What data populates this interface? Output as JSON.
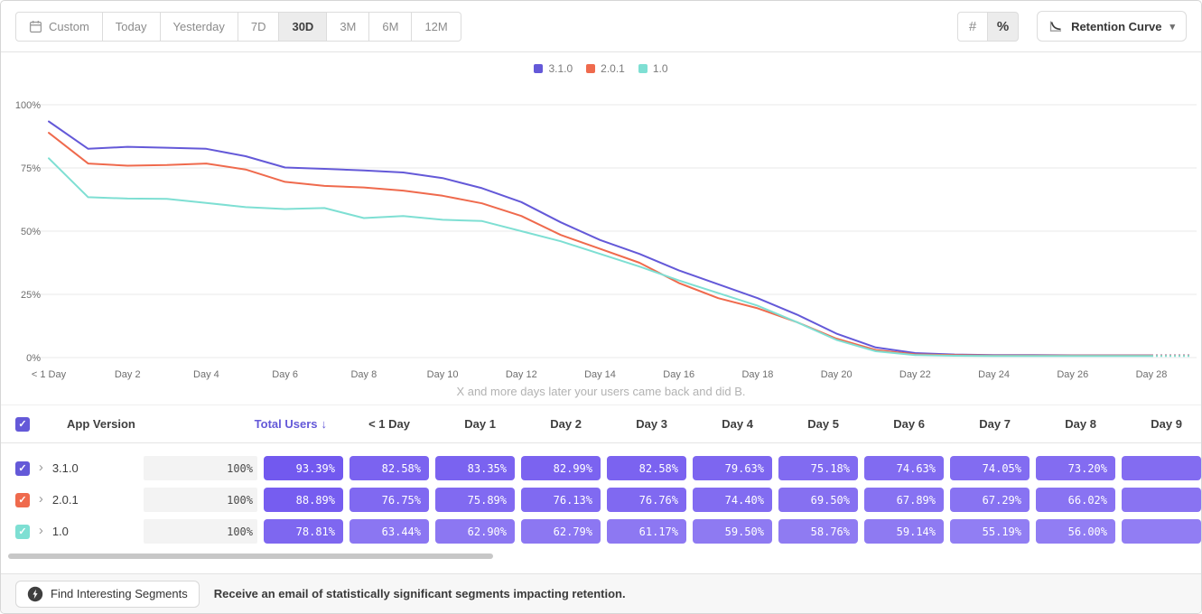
{
  "toolbar": {
    "date_ranges": [
      {
        "label": "Custom",
        "icon": "calendar",
        "active": false
      },
      {
        "label": "Today",
        "active": false
      },
      {
        "label": "Yesterday",
        "active": false
      },
      {
        "label": "7D",
        "active": false
      },
      {
        "label": "30D",
        "active": true
      },
      {
        "label": "3M",
        "active": false
      },
      {
        "label": "6M",
        "active": false
      },
      {
        "label": "12M",
        "active": false
      }
    ],
    "value_toggles": [
      {
        "icon": "hash",
        "glyph": "#",
        "active": false
      },
      {
        "icon": "percent",
        "glyph": "%",
        "active": true
      }
    ],
    "chart_type": {
      "label": "Retention Curve"
    }
  },
  "chart_data": {
    "type": "line",
    "x_label_caption": "X and more days later your users came back and did B.",
    "y_ticks": [
      "0%",
      "25%",
      "50%",
      "75%",
      "100%"
    ],
    "x_ticks": [
      "< 1 Day",
      "Day 2",
      "Day 4",
      "Day 6",
      "Day 8",
      "Day 10",
      "Day 12",
      "Day 14",
      "Day 16",
      "Day 18",
      "Day 20",
      "Day 22",
      "Day 24",
      "Day 26",
      "Day 28"
    ],
    "ylim": [
      0,
      100
    ],
    "grid": "horizontal",
    "legend_position": "top-center",
    "series": [
      {
        "name": "3.1.0",
        "color": "#6459D8",
        "values": [
          93.39,
          82.58,
          83.35,
          82.99,
          82.58,
          79.63,
          75.18,
          74.63,
          74.05,
          73.2,
          71.0,
          67.0,
          61.5,
          53.5,
          46.5,
          41.0,
          34.5,
          29.0,
          23.5,
          17.0,
          9.5,
          4.0,
          1.8,
          1.2,
          1.0,
          1.0,
          0.9,
          0.9,
          0.9,
          0.9
        ]
      },
      {
        "name": "2.0.1",
        "color": "#EF6A4D",
        "values": [
          88.89,
          76.75,
          75.89,
          76.13,
          76.76,
          74.4,
          69.5,
          67.89,
          67.29,
          66.02,
          64.0,
          61.0,
          56.0,
          48.5,
          43.0,
          37.5,
          29.5,
          23.5,
          19.5,
          14.0,
          7.5,
          3.0,
          1.3,
          1.0,
          0.8,
          0.8,
          0.8,
          0.8,
          0.8,
          0.8
        ]
      },
      {
        "name": "1.0",
        "color": "#7EDFD3",
        "values": [
          78.81,
          63.44,
          62.9,
          62.79,
          61.17,
          59.5,
          58.76,
          59.14,
          55.19,
          56.0,
          54.5,
          54.0,
          50.0,
          46.0,
          41.0,
          36.0,
          30.5,
          25.5,
          20.5,
          14.0,
          7.0,
          2.5,
          1.0,
          0.7,
          0.6,
          0.6,
          0.6,
          0.6,
          0.6,
          0.6
        ]
      }
    ]
  },
  "table": {
    "headers": [
      "App Version",
      "Total Users",
      "< 1 Day",
      "Day 1",
      "Day 2",
      "Day 3",
      "Day 4",
      "Day 5",
      "Day 6",
      "Day 7",
      "Day 8",
      "Day 9"
    ],
    "sort_column": "Total Users",
    "sort_indicator": "↓",
    "sort_color": "#6459D8",
    "cell_base_color_rgb": [
      104,
      77,
      238
    ],
    "rows": [
      {
        "name": "3.1.0",
        "color": "#6459D8",
        "total_users": "100%",
        "values": [
          93.39,
          82.58,
          83.35,
          82.99,
          82.58,
          79.63,
          75.18,
          74.63,
          74.05,
          73.2
        ]
      },
      {
        "name": "2.0.1",
        "color": "#EF6A4D",
        "total_users": "100%",
        "values": [
          88.89,
          76.75,
          75.89,
          76.13,
          76.76,
          74.4,
          69.5,
          67.89,
          67.29,
          66.02
        ]
      },
      {
        "name": "1.0",
        "color": "#7EDFD3",
        "total_users": "100%",
        "values": [
          78.81,
          63.44,
          62.9,
          62.79,
          61.17,
          59.5,
          58.76,
          59.14,
          55.19,
          56.0
        ]
      }
    ]
  },
  "footer": {
    "button_label": "Find Interesting Segments",
    "message": "Receive an email of statistically significant segments impacting retention."
  }
}
